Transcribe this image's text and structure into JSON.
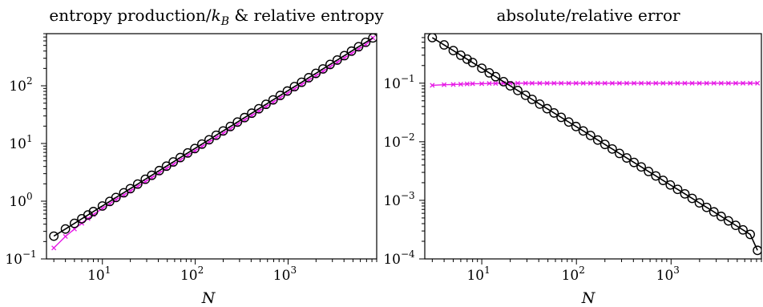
{
  "chart_data": [
    {
      "type": "line",
      "title_main": "entropy production/",
      "title_sym": "k",
      "title_sub": "B",
      "title_rest": " & relative entropy",
      "xlabel": "N",
      "ylabel": "",
      "xscale": "log",
      "yscale": "log",
      "xlim": [
        2.5,
        9000
      ],
      "ylim": [
        0.1,
        800
      ],
      "grid": false,
      "xticks": [
        {
          "base": "10",
          "exp": "1",
          "value": 10
        },
        {
          "base": "10",
          "exp": "2",
          "value": 100
        },
        {
          "base": "10",
          "exp": "3",
          "value": 1000
        }
      ],
      "yticks": [
        {
          "base": "10",
          "exp": "−1",
          "value": 0.1
        },
        {
          "base": "10",
          "exp": "0",
          "value": 1
        },
        {
          "base": "10",
          "exp": "1",
          "value": 10
        },
        {
          "base": "10",
          "exp": "2",
          "value": 100
        }
      ],
      "series": [
        {
          "marker": "circle",
          "color": "#000000",
          "x": [
            3,
            4,
            5,
            6,
            7,
            8,
            10,
            12,
            14,
            17,
            20,
            24,
            29,
            34,
            41,
            49,
            58,
            69,
            83,
            99,
            118,
            141,
            168,
            200,
            239,
            285,
            340,
            406,
            484,
            578,
            690,
            823,
            982,
            1172,
            1398,
            1669,
            1991,
            2376,
            2835,
            3383,
            4037,
            4817,
            5748,
            6860,
            8186
          ],
          "y": [
            0.248,
            0.33,
            0.413,
            0.496,
            0.578,
            0.661,
            0.826,
            0.991,
            1.16,
            1.4,
            1.65,
            1.98,
            2.4,
            2.81,
            3.39,
            4.05,
            4.79,
            5.7,
            6.86,
            8.18,
            9.75,
            11.6,
            13.9,
            16.5,
            19.7,
            23.5,
            28.1,
            33.5,
            40,
            47.7,
            57,
            68,
            81.1,
            96.8,
            115,
            138,
            164,
            196,
            234,
            279,
            333,
            398,
            475,
            567,
            676
          ]
        },
        {
          "marker": "x",
          "color": "#e619e6",
          "x": [
            3,
            4,
            5,
            6,
            7,
            8,
            10,
            12,
            14,
            17,
            20,
            24,
            29,
            34,
            41,
            49,
            58,
            69,
            83,
            99,
            118,
            141,
            168,
            200,
            239,
            285,
            340,
            406,
            484,
            578,
            690,
            823,
            982,
            1172,
            1398,
            1669,
            1991,
            2376,
            2835,
            3383,
            4037,
            4817,
            5748,
            6860,
            8186
          ],
          "y": [
            0.155,
            0.245,
            0.33,
            0.415,
            0.5,
            0.585,
            0.752,
            0.9,
            1.06,
            1.27,
            1.5,
            1.8,
            2.18,
            2.55,
            3.08,
            3.68,
            4.35,
            5.18,
            6.24,
            7.44,
            8.86,
            10.6,
            12.6,
            15,
            17.9,
            21.4,
            25.5,
            30.5,
            36.4,
            43.4,
            51.8,
            61.8,
            73.7,
            88,
            105,
            125,
            149,
            178,
            213,
            254,
            303,
            362,
            432,
            515,
            676
          ]
        }
      ]
    },
    {
      "type": "line",
      "title": "absolute/relative error",
      "xlabel": "N",
      "ylabel": "",
      "xscale": "log",
      "yscale": "log",
      "xlim": [
        2.5,
        9000
      ],
      "ylim": [
        0.0001,
        0.7
      ],
      "grid": false,
      "xticks": [
        {
          "base": "10",
          "exp": "1",
          "value": 10
        },
        {
          "base": "10",
          "exp": "2",
          "value": 100
        },
        {
          "base": "10",
          "exp": "3",
          "value": 1000
        }
      ],
      "yticks": [
        {
          "base": "10",
          "exp": "−4",
          "value": 0.0001
        },
        {
          "base": "10",
          "exp": "−3",
          "value": 0.001
        },
        {
          "base": "10",
          "exp": "−2",
          "value": 0.01
        },
        {
          "base": "10",
          "exp": "−1",
          "value": 0.1
        }
      ],
      "series": [
        {
          "marker": "circle",
          "color": "#000000",
          "x": [
            3,
            4,
            5,
            6,
            7,
            8,
            10,
            12,
            14,
            17,
            20,
            24,
            29,
            34,
            41,
            49,
            58,
            69,
            83,
            99,
            118,
            141,
            168,
            200,
            239,
            285,
            340,
            406,
            484,
            578,
            690,
            823,
            982,
            1172,
            1398,
            1669,
            1991,
            2376,
            2835,
            3383,
            4037,
            4817,
            5748,
            6860,
            8186
          ],
          "y": [
            0.6,
            0.45,
            0.36,
            0.3,
            0.257,
            0.225,
            0.18,
            0.15,
            0.129,
            0.106,
            0.09,
            0.075,
            0.0621,
            0.0529,
            0.0439,
            0.0367,
            0.031,
            0.0261,
            0.0217,
            0.0182,
            0.0153,
            0.0128,
            0.0107,
            0.009,
            0.00753,
            0.00632,
            0.00529,
            0.00443,
            0.00372,
            0.00311,
            0.00261,
            0.00219,
            0.00183,
            0.00154,
            0.00129,
            0.00108,
            0.000904,
            0.000758,
            0.000635,
            0.000532,
            0.000446,
            0.000374,
            0.000313,
            0.000262,
            0.00014
          ]
        },
        {
          "marker": "x",
          "color": "#e619e6",
          "x": [
            3,
            4,
            5,
            6,
            7,
            8,
            10,
            12,
            14,
            17,
            20,
            24,
            29,
            34,
            41,
            49,
            58,
            69,
            83,
            99,
            118,
            141,
            168,
            200,
            239,
            285,
            340,
            406,
            484,
            578,
            690,
            823,
            982,
            1172,
            1398,
            1669,
            1991,
            2376,
            2835,
            3383,
            4037,
            4817,
            5748,
            6860,
            8186
          ],
          "y": [
            0.092,
            0.094,
            0.095,
            0.096,
            0.097,
            0.098,
            0.098,
            0.099,
            0.099,
            0.1,
            0.1,
            0.1,
            0.1,
            0.1,
            0.1,
            0.1,
            0.1,
            0.1,
            0.1,
            0.1,
            0.1,
            0.1,
            0.1,
            0.1,
            0.1,
            0.1,
            0.1,
            0.1,
            0.1,
            0.1,
            0.1,
            0.1,
            0.1,
            0.1,
            0.1,
            0.1,
            0.1,
            0.1,
            0.1,
            0.1,
            0.1,
            0.1,
            0.1,
            0.1,
            0.1
          ]
        }
      ]
    }
  ]
}
